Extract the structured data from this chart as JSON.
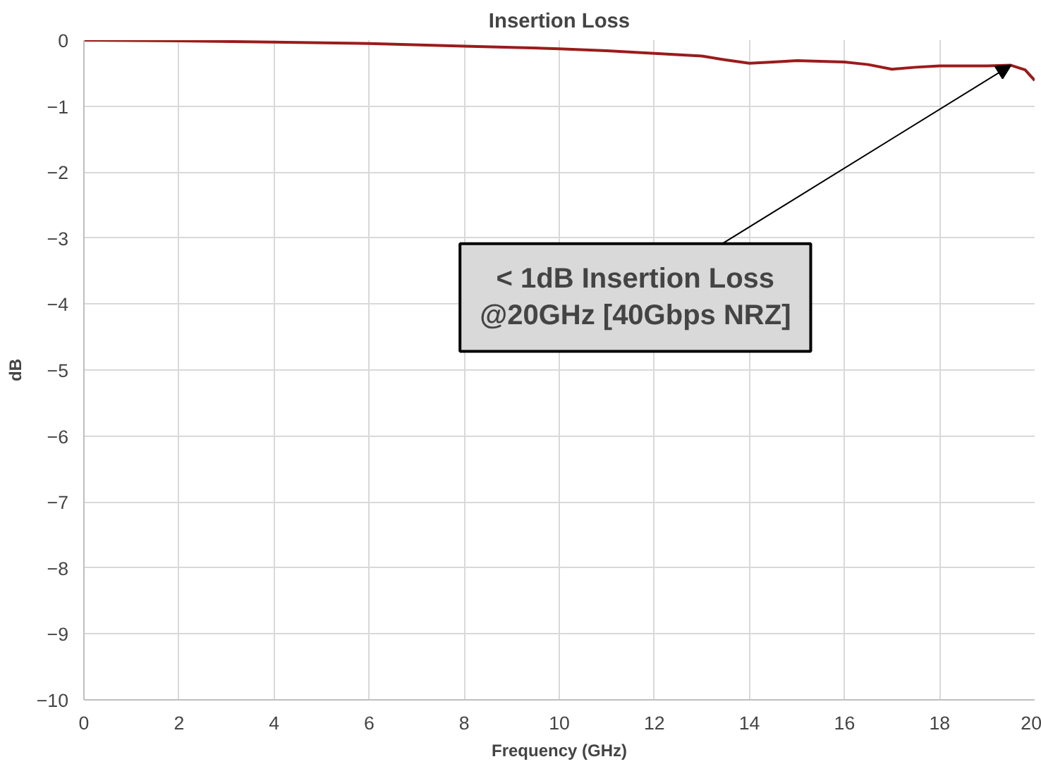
{
  "chart_data": {
    "type": "line",
    "title": "Insertion Loss",
    "xlabel": "Frequency (GHz)",
    "ylabel": "dB",
    "x": [
      0,
      2,
      4,
      6,
      8,
      10,
      11,
      12,
      13,
      13.5,
      14,
      14.5,
      15,
      16,
      16.5,
      17,
      17.5,
      18,
      19,
      19.5,
      19.8,
      20
    ],
    "series": [
      {
        "color": "#9b1b1b",
        "values": [
          0,
          -0.01,
          -0.03,
          -0.05,
          -0.09,
          -0.13,
          -0.16,
          -0.2,
          -0.24,
          -0.3,
          -0.35,
          -0.33,
          -0.31,
          -0.33,
          -0.37,
          -0.44,
          -0.41,
          -0.39,
          -0.39,
          -0.38,
          -0.45,
          -0.61
        ]
      }
    ],
    "xlim": [
      0,
      20
    ],
    "ylim": [
      -10,
      0
    ],
    "xticks": [
      0,
      2,
      4,
      6,
      8,
      10,
      12,
      14,
      16,
      18,
      20
    ],
    "yticks": [
      -10,
      -9,
      -8,
      -7,
      -6,
      -5,
      -4,
      -3,
      -2,
      -1,
      0
    ],
    "grid": true,
    "marker": "none",
    "line_style": "solid",
    "annotations": [
      {
        "text": "< 1dB Insertion Loss\n@20GHz [40Gbps NRZ]",
        "x": 19.5,
        "y": -0.38
      }
    ]
  }
}
